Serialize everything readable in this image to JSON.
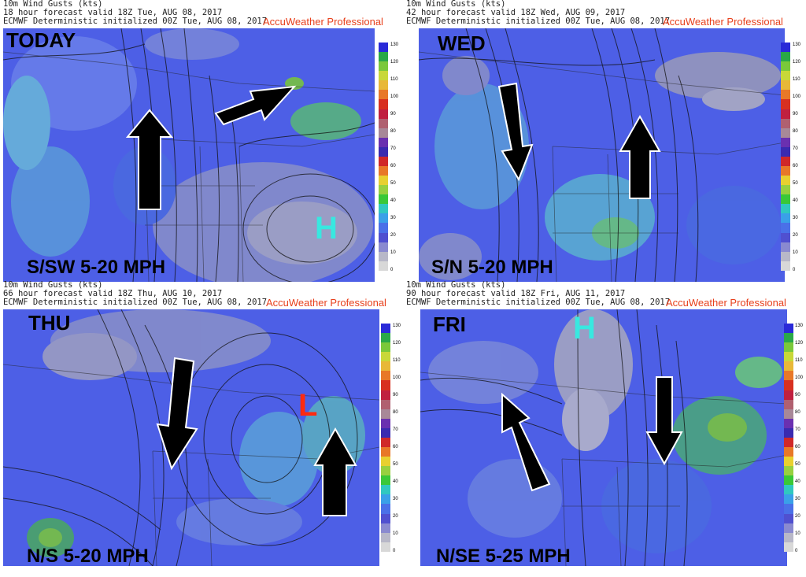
{
  "panels": [
    {
      "id": "today",
      "header1": "10m Wind Gusts (kts)",
      "header2": "18 hour forecast valid 18Z Tue, AUG 08, 2017",
      "header3": "ECMWF Deterministic initialized 00Z Tue, AUG 08, 2017",
      "brand": "AccuWeather Professional",
      "day": "TODAY",
      "speed": "S/SW 5-20 MPH",
      "pressure_centers": [
        {
          "label": "H",
          "color": "#38e8e0"
        }
      ],
      "arrows": [
        {
          "direction": "north"
        },
        {
          "direction": "northeast"
        }
      ]
    },
    {
      "id": "wed",
      "header1": "10m Wind Gusts (kts)",
      "header2": "42 hour forecast valid 18Z Wed, AUG 09, 2017",
      "header3": "ECMWF Deterministic initialized 00Z Tue, AUG 08, 2017",
      "brand": "AccuWeather Professional",
      "day": "WED",
      "speed": "S/N 5-20 MPH",
      "pressure_centers": [],
      "arrows": [
        {
          "direction": "south"
        },
        {
          "direction": "north"
        }
      ]
    },
    {
      "id": "thu",
      "header1": "10m Wind Gusts (kts)",
      "header2": "66 hour forecast valid 18Z Thu, AUG 10, 2017",
      "header3": "ECMWF Deterministic initialized 00Z Tue, AUG 08, 2017",
      "brand": "AccuWeather Professional",
      "day": "THU",
      "speed": "N/S 5-20 MPH",
      "pressure_centers": [
        {
          "label": "L",
          "color": "#ff2a10"
        }
      ],
      "arrows": [
        {
          "direction": "south"
        },
        {
          "direction": "north"
        }
      ]
    },
    {
      "id": "fri",
      "header1": "10m Wind Gusts (kts)",
      "header2": "90 hour forecast valid 18Z Fri, AUG 11, 2017",
      "header3": "ECMWF Deterministic initialized 00Z Tue, AUG 08, 2017",
      "brand": "AccuWeather Professional",
      "day": "FRI",
      "speed": "N/SE 5-25 MPH",
      "pressure_centers": [
        {
          "label": "H",
          "color": "#38e8e0"
        }
      ],
      "arrows": [
        {
          "direction": "northwest"
        },
        {
          "direction": "south"
        }
      ]
    }
  ],
  "colorbar": {
    "ticks": [
      "130",
      "120",
      "110",
      "100",
      "90",
      "80",
      "70",
      "60",
      "50",
      "40",
      "30",
      "20",
      "10",
      "0"
    ],
    "colors": [
      "#2a2ad8",
      "#2aa848",
      "#7ac83a",
      "#c8d838",
      "#e8b838",
      "#e87828",
      "#d83020",
      "#c02040",
      "#b06070",
      "#a88898",
      "#6a30b0",
      "#3a2ab0",
      "#d02828",
      "#e87828",
      "#e8d030",
      "#98d040",
      "#3ac838",
      "#30c8c0",
      "#3aa0e8",
      "#4a70e8",
      "#5050d0",
      "#8a8ad0",
      "#b8b8c8",
      "#d8d8d8"
    ]
  }
}
